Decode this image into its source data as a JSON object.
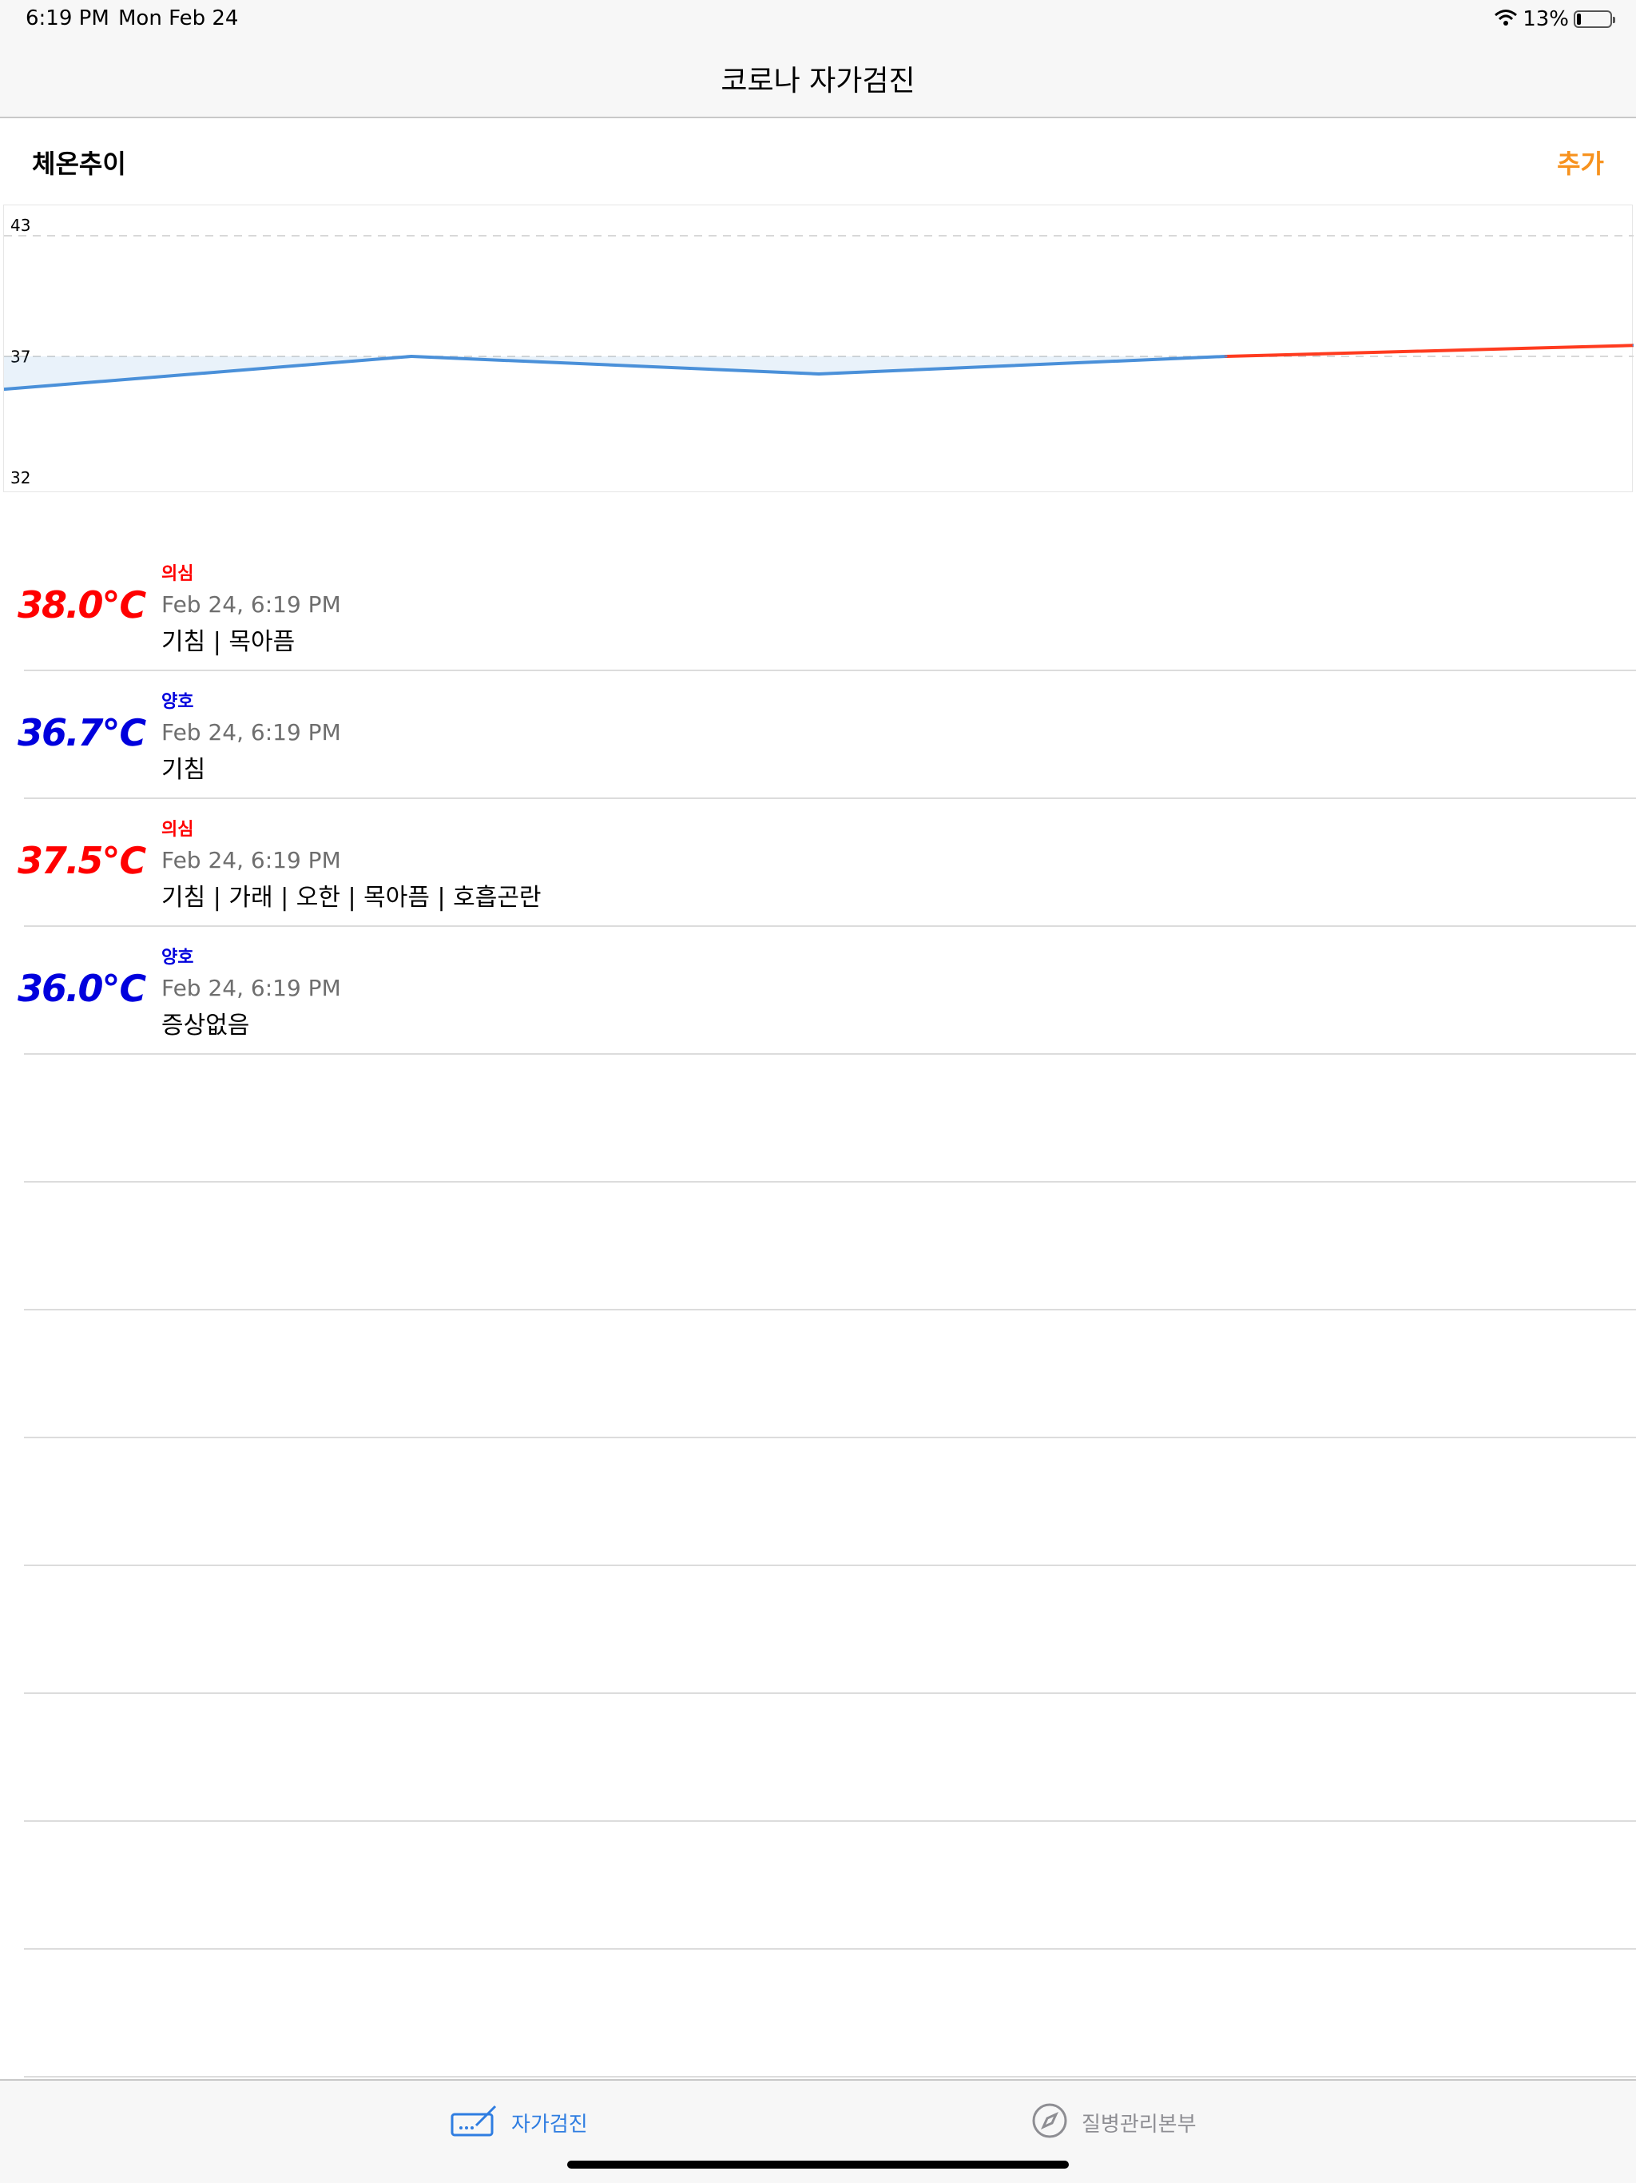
{
  "status_bar": {
    "time": "6:19 PM",
    "date": "Mon Feb 24",
    "battery": "13%",
    "battery_level": 0.13,
    "wifi_icon": "wifi-icon"
  },
  "nav": {
    "title": "코로나 자가검진"
  },
  "section": {
    "title": "체온추이",
    "add_label": "추가"
  },
  "colors": {
    "accent": "#f7921e",
    "suspect": "#ff0000",
    "normal": "#0000dd",
    "line_normal": "#4a90d9",
    "line_high": "#ff3b1f",
    "tab_active": "#2f7de1",
    "tab_inactive": "#8e8e93"
  },
  "chart_data": {
    "type": "line",
    "ylim": [
      32,
      43
    ],
    "y_ticks": [
      "43",
      "37",
      "32"
    ],
    "threshold": 37.5,
    "x": [
      1,
      2,
      3,
      4,
      5
    ],
    "values": [
      36.0,
      37.5,
      36.7,
      37.5,
      38.0
    ]
  },
  "records": [
    {
      "temp": "38.0℃",
      "status": "의심",
      "status_type": "suspect",
      "time": "Feb 24, 6:19 PM",
      "symptoms": "기침 | 목아픔"
    },
    {
      "temp": "36.7℃",
      "status": "양호",
      "status_type": "normal",
      "time": "Feb 24, 6:19 PM",
      "symptoms": "기침"
    },
    {
      "temp": "37.5℃",
      "status": "의심",
      "status_type": "suspect",
      "time": "Feb 24, 6:19 PM",
      "symptoms": "기침 | 가래 | 오한 | 목아픔 | 호흡곤란"
    },
    {
      "temp": "36.0℃",
      "status": "양호",
      "status_type": "normal",
      "time": "Feb 24, 6:19 PM",
      "symptoms": "증상없음"
    }
  ],
  "tabs": [
    {
      "label": "자가검진",
      "icon": "keyboard-pen-icon",
      "active": true
    },
    {
      "label": "질병관리본부",
      "icon": "compass-icon",
      "active": false
    }
  ]
}
